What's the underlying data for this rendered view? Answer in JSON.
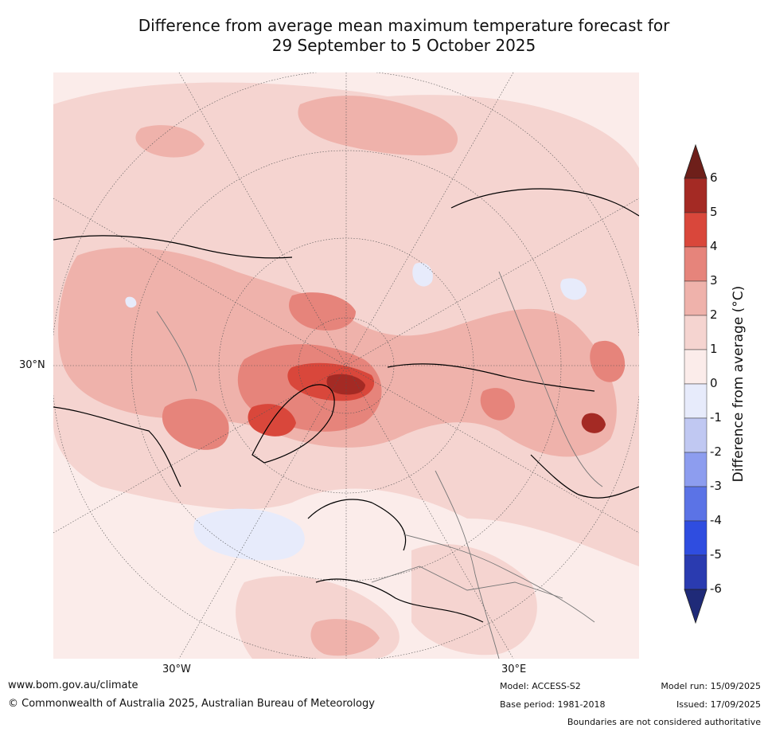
{
  "title": {
    "line1": "Difference from average mean maximum temperature forecast for",
    "line2": "29 September to 5 October 2025"
  },
  "map": {
    "lat_label": "30°N",
    "lon_labels": {
      "west": "30°W",
      "east": "30°E"
    }
  },
  "colorbar": {
    "label": "Difference from average (°C)",
    "ticks": [
      "6",
      "5",
      "4",
      "3",
      "2",
      "1",
      "0",
      "-1",
      "-2",
      "-3",
      "-4",
      "-5",
      "-6"
    ],
    "colors": [
      "#6e1f1a",
      "#a42a24",
      "#d9473b",
      "#e6847b",
      "#efb2ab",
      "#f5d4d0",
      "#fbecea",
      "#e7ebfb",
      "#c0c8f2",
      "#8d9def",
      "#5b73e6",
      "#2f4de0",
      "#2a3bb0",
      "#1f2a78"
    ]
  },
  "footer": {
    "website": "www.bom.gov.au/climate",
    "copyright": "© Commonwealth of Australia 2025, Australian Bureau of Meteorology",
    "model": "Model: ACCESS-S2",
    "base_period": "Base period: 1981-2018",
    "model_run": "Model run: 15/09/2025",
    "issued": "Issued: 17/09/2025",
    "disclaimer": "Boundaries are not considered authoritative"
  }
}
